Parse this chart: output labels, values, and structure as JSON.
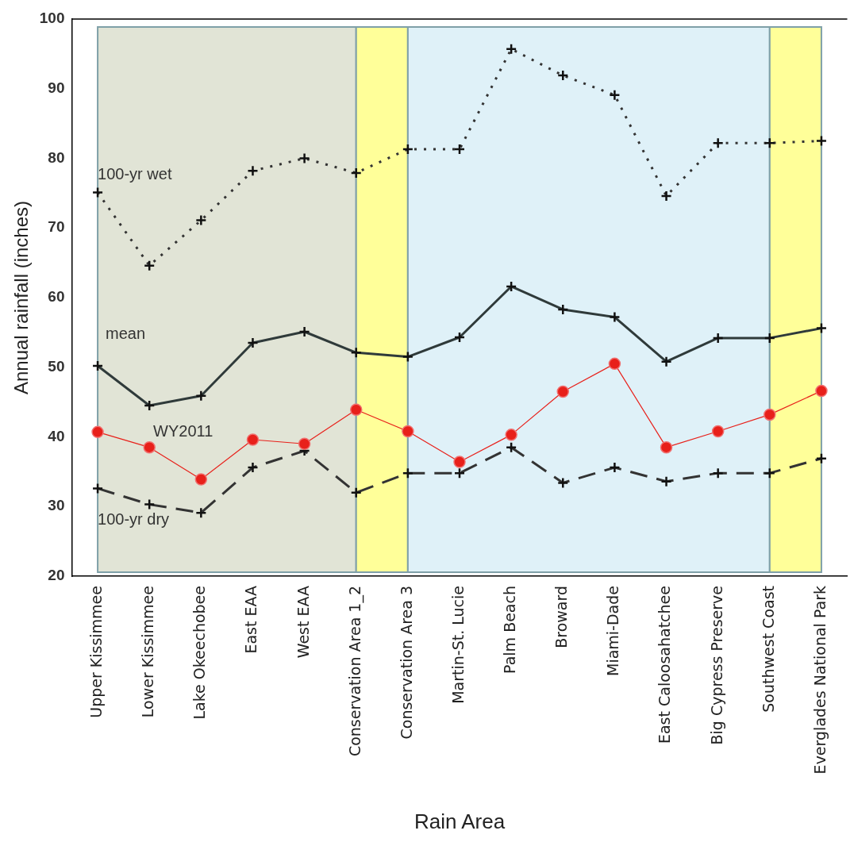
{
  "chart_data": {
    "type": "line",
    "xlabel": "Rain Area",
    "ylabel": "Annual rainfall (inches)",
    "categories": [
      "Upper Kissimmee",
      "Lower Kissimmee",
      "Lake Okeechobee",
      "East EAA",
      "West EAA",
      "Conservation Area 1_2",
      "Conservation Area 3",
      "Martin-St. Lucie",
      "Palm Beach",
      "Broward",
      "Miami-Dade",
      "East Caloosahatchee",
      "Big Cypress Preserve",
      "Southwest Coast",
      "Everglades National Park"
    ],
    "ylim": [
      20,
      100
    ],
    "yticks": [
      20,
      30,
      40,
      50,
      60,
      70,
      80,
      90,
      100
    ],
    "grid": false,
    "legend": false,
    "series": [
      {
        "name": "100-yr wet",
        "color": "#333333",
        "line_style": "dotted",
        "marker": "cross",
        "values": [
          75.1,
          64.6,
          71.1,
          78.2,
          80.0,
          77.9,
          81.3,
          81.3,
          95.7,
          91.9,
          89.1,
          74.6,
          82.2,
          82.2,
          82.5
        ]
      },
      {
        "name": "mean",
        "color": "#2f3a3a",
        "line_style": "solid",
        "marker": "cross",
        "values": [
          50.2,
          44.5,
          45.9,
          53.5,
          55.1,
          52.1,
          51.5,
          54.3,
          61.6,
          58.3,
          57.2,
          50.8,
          54.2,
          54.2,
          55.6
        ]
      },
      {
        "name": "WY2011",
        "color": "#e8201a",
        "line_style": "solid",
        "marker": "circle",
        "values": [
          40.7,
          38.5,
          33.9,
          39.6,
          39.0,
          43.9,
          40.8,
          36.4,
          40.3,
          46.5,
          50.5,
          38.5,
          40.8,
          43.2,
          46.6
        ]
      },
      {
        "name": "100-yr dry",
        "color": "#333333",
        "line_style": "dashed",
        "marker": "cross",
        "values": [
          32.6,
          30.3,
          29.1,
          35.6,
          38.0,
          32.0,
          34.8,
          34.8,
          38.5,
          33.4,
          35.6,
          33.6,
          34.8,
          34.8,
          36.9
        ]
      }
    ],
    "bands": [
      {
        "axis": "x",
        "from": "Upper Kissimmee",
        "to": "Conservation Area 1_2",
        "color": "#e1e4d6"
      },
      {
        "axis": "x",
        "from": "Conservation Area 1_2",
        "to": "Conservation Area 3",
        "color": "#ffff99"
      },
      {
        "axis": "x",
        "from": "Conservation Area 3",
        "to": "Southwest Coast",
        "color": "#dff1f8"
      },
      {
        "axis": "x",
        "from": "Southwest Coast",
        "to": "Everglades National Park",
        "color": "#ffff99"
      }
    ]
  }
}
